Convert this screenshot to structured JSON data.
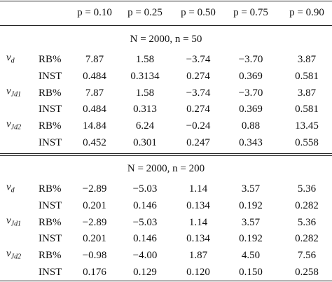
{
  "table": {
    "header": [
      "p = 0.10",
      "p = 0.25",
      "p = 0.50",
      "p = 0.75",
      "p = 0.90"
    ],
    "sections": [
      {
        "title": "N = 2000, n = 50",
        "groups": [
          {
            "estimator": {
              "base": "v",
              "sub": "d"
            },
            "rows": [
              {
                "metric": "RB%",
                "values": [
                  "7.87",
                  "1.58",
                  "−3.74",
                  "−3.70",
                  "3.87"
                ]
              },
              {
                "metric": "INST",
                "values": [
                  "0.484",
                  "0.3134",
                  "0.274",
                  "0.369",
                  "0.581"
                ]
              }
            ]
          },
          {
            "estimator": {
              "base": "v",
              "sub": "Jd1"
            },
            "rows": [
              {
                "metric": "RB%",
                "values": [
                  "7.87",
                  "1.58",
                  "−3.74",
                  "−3.70",
                  "3.87"
                ]
              },
              {
                "metric": "INST",
                "values": [
                  "0.484",
                  "0.313",
                  "0.274",
                  "0.369",
                  "0.581"
                ]
              }
            ]
          },
          {
            "estimator": {
              "base": "v",
              "sub": "Jd2"
            },
            "rows": [
              {
                "metric": "RB%",
                "values": [
                  "14.84",
                  "6.24",
                  "−0.24",
                  "0.88",
                  "13.45"
                ]
              },
              {
                "metric": "INST",
                "values": [
                  "0.452",
                  "0.301",
                  "0.247",
                  "0.343",
                  "0.558"
                ]
              }
            ]
          }
        ]
      },
      {
        "title": "N = 2000, n = 200",
        "groups": [
          {
            "estimator": {
              "base": "v",
              "sub": "d"
            },
            "rows": [
              {
                "metric": "RB%",
                "values": [
                  "−2.89",
                  "−5.03",
                  "1.14",
                  "3.57",
                  "5.36"
                ]
              },
              {
                "metric": "INST",
                "values": [
                  "0.201",
                  "0.146",
                  "0.134",
                  "0.192",
                  "0.282"
                ]
              }
            ]
          },
          {
            "estimator": {
              "base": "v",
              "sub": "Jd1"
            },
            "rows": [
              {
                "metric": "RB%",
                "values": [
                  "−2.89",
                  "−5.03",
                  "1.14",
                  "3.57",
                  "5.36"
                ]
              },
              {
                "metric": "INST",
                "values": [
                  "0.201",
                  "0.146",
                  "0.134",
                  "0.192",
                  "0.282"
                ]
              }
            ]
          },
          {
            "estimator": {
              "base": "v",
              "sub": "Jd2"
            },
            "rows": [
              {
                "metric": "RB%",
                "values": [
                  "−0.98",
                  "−4.00",
                  "1.87",
                  "4.50",
                  "7.56"
                ]
              },
              {
                "metric": "INST",
                "values": [
                  "0.176",
                  "0.129",
                  "0.120",
                  "0.150",
                  "0.258"
                ]
              }
            ]
          }
        ]
      }
    ]
  }
}
